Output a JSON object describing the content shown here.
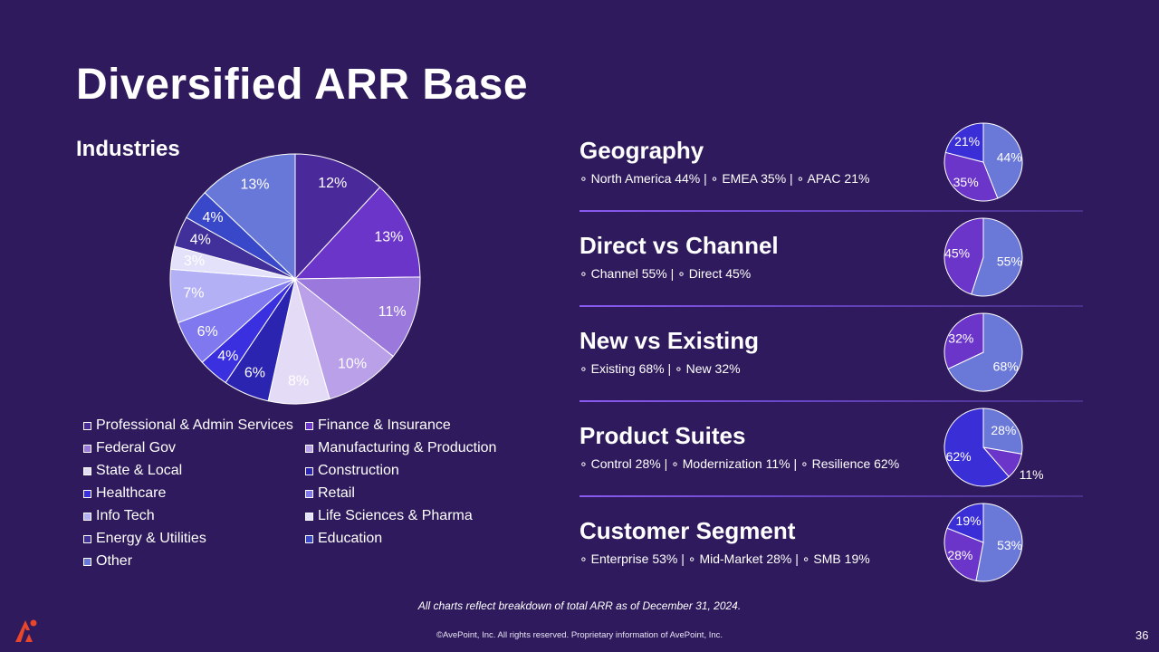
{
  "title": "Diversified ARR Base",
  "industries_title": "Industries",
  "chart_data": [
    {
      "type": "pie",
      "title": "Industries",
      "categories": [
        "Professional & Admin Services",
        "Finance & Insurance",
        "Federal Gov",
        "Manufacturing & Production",
        "State & Local",
        "Construction",
        "Healthcare",
        "Retail",
        "Info Tech",
        "Life Sciences & Pharma",
        "Energy & Utilities",
        "Education",
        "Other"
      ],
      "values": [
        12,
        13,
        11,
        10,
        8,
        6,
        4,
        6,
        7,
        3,
        4,
        4,
        13
      ],
      "labels": [
        "12%",
        "13%",
        "11%",
        "10%",
        "8%",
        "6%",
        "4%",
        "6%",
        "7%",
        "3%",
        "4%",
        "4%",
        "13%"
      ],
      "colors": [
        "#4a2a9a",
        "#6a35c8",
        "#9b78dc",
        "#baa0e8",
        "#e4dcf6",
        "#2a24b0",
        "#3a30e0",
        "#7f78ee",
        "#b4b0f6",
        "#e4e2fa",
        "#42309a",
        "#3848c8",
        "#6878d8"
      ],
      "legend_placement": "bottom"
    },
    {
      "type": "pie",
      "title": "Geography",
      "categories": [
        "North America",
        "EMEA",
        "APAC"
      ],
      "values": [
        44,
        35,
        21
      ],
      "labels": [
        "44%",
        "35%",
        "21%"
      ],
      "colors": [
        "#6a78d8",
        "#6a35c8",
        "#3a2ed6"
      ]
    },
    {
      "type": "pie",
      "title": "Direct vs Channel",
      "categories": [
        "Channel",
        "Direct"
      ],
      "values": [
        55,
        45
      ],
      "labels": [
        "55%",
        "45%"
      ],
      "colors": [
        "#6a78d8",
        "#6a35c8"
      ]
    },
    {
      "type": "pie",
      "title": "New vs Existing",
      "categories": [
        "Existing",
        "New"
      ],
      "values": [
        68,
        32
      ],
      "labels": [
        "68%",
        "32%"
      ],
      "colors": [
        "#6a78d8",
        "#6a35c8"
      ]
    },
    {
      "type": "pie",
      "title": "Product Suites",
      "categories": [
        "Control",
        "Modernization",
        "Resilience"
      ],
      "values": [
        28,
        11,
        62
      ],
      "labels": [
        "28%",
        "11%",
        "62%"
      ],
      "colors": [
        "#6a78d8",
        "#6a35c8",
        "#3a2ed6"
      ]
    },
    {
      "type": "pie",
      "title": "Customer Segment",
      "categories": [
        "Enterprise",
        "Mid-Market",
        "SMB"
      ],
      "values": [
        53,
        28,
        19
      ],
      "labels": [
        "53%",
        "28%",
        "19%"
      ],
      "colors": [
        "#6a78d8",
        "#6a35c8",
        "#3a2ed6"
      ]
    }
  ],
  "sections": [
    {
      "title": "Geography",
      "subtitle": "∘ North America 44% | ∘ EMEA 35% | ∘ APAC 21%"
    },
    {
      "title": "Direct vs Channel",
      "subtitle": "∘ Channel 55% | ∘ Direct 45%"
    },
    {
      "title": "New vs Existing",
      "subtitle": "∘ Existing 68% | ∘ New 32%"
    },
    {
      "title": "Product Suites",
      "subtitle": "∘ Control 28% | ∘ Modernization 11% | ∘ Resilience 62%"
    },
    {
      "title": "Customer Segment",
      "subtitle": "∘ Enterprise 53% | ∘ Mid-Market 28% | ∘ SMB 19%"
    }
  ],
  "footnote": "All charts reflect breakdown of total ARR as of December 31, 2024.",
  "copyright": "©AvePoint, Inc. All rights reserved. Proprietary information of AvePoint, Inc.",
  "page_number": "36",
  "colors": {
    "background": "#2e1a5c",
    "accent": "#e8472b"
  },
  "logo_icon": "avepoint-logo-icon"
}
